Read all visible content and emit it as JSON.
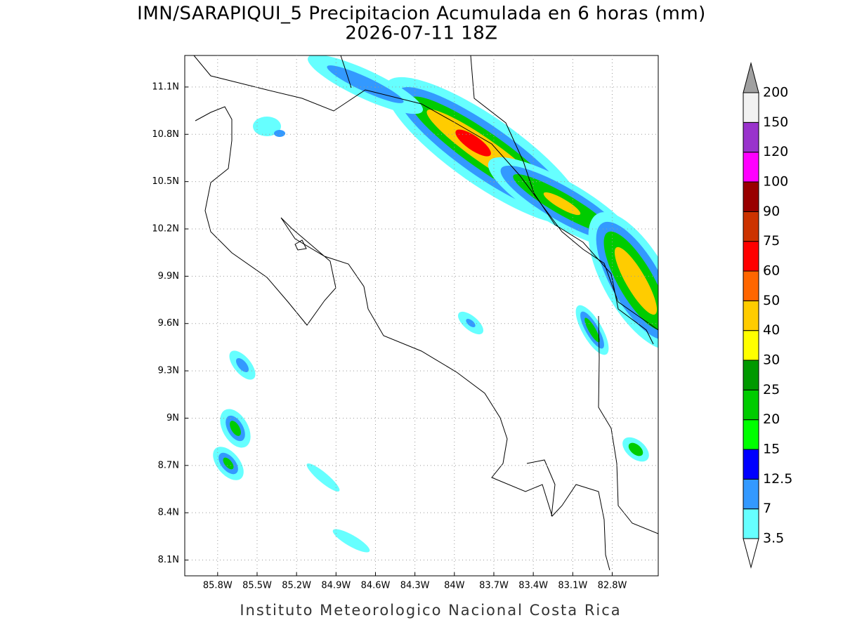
{
  "chart_data": {
    "type": "contour-map",
    "title": "IMN/SARAPIQUI_5 Precipitacion Acumulada en 6 horas (mm)",
    "subtitle": "2026-07-11 18Z",
    "footer": "Instituto Meteorologico Nacional Costa Rica",
    "xlim": [
      -86.05,
      -82.45
    ],
    "ylim": [
      8.0,
      11.3
    ],
    "xticks": [
      {
        "value": -85.8,
        "label": "85.8W"
      },
      {
        "value": -85.5,
        "label": "85.5W"
      },
      {
        "value": -85.2,
        "label": "85.2W"
      },
      {
        "value": -84.9,
        "label": "84.9W"
      },
      {
        "value": -84.6,
        "label": "84.6W"
      },
      {
        "value": -84.3,
        "label": "84.3W"
      },
      {
        "value": -84.0,
        "label": "84W"
      },
      {
        "value": -83.7,
        "label": "83.7W"
      },
      {
        "value": -83.4,
        "label": "83.4W"
      },
      {
        "value": -83.1,
        "label": "83.1W"
      },
      {
        "value": -82.8,
        "label": "82.8W"
      }
    ],
    "yticks": [
      {
        "value": 8.1,
        "label": "8.1N"
      },
      {
        "value": 8.4,
        "label": "8.4N"
      },
      {
        "value": 8.7,
        "label": "8.7N"
      },
      {
        "value": 9.0,
        "label": "9N"
      },
      {
        "value": 9.3,
        "label": "9.3N"
      },
      {
        "value": 9.6,
        "label": "9.6N"
      },
      {
        "value": 9.9,
        "label": "9.9N"
      },
      {
        "value": 10.2,
        "label": "10.2N"
      },
      {
        "value": 10.5,
        "label": "10.5N"
      },
      {
        "value": 10.8,
        "label": "10.8N"
      },
      {
        "value": 11.1,
        "label": "11.1N"
      }
    ],
    "grid": true,
    "legend": {
      "levels": [
        3.5,
        7,
        12.5,
        15,
        20,
        25,
        30,
        40,
        50,
        60,
        75,
        90,
        100,
        120,
        150,
        200
      ],
      "colors": [
        "#66ffff",
        "#3399ff",
        "#0000ff",
        "#00ff00",
        "#00cc00",
        "#009900",
        "#ffff00",
        "#ffcc00",
        "#ff6600",
        "#ff0000",
        "#cc3300",
        "#990000",
        "#ff00ff",
        "#9933cc",
        "#f2f2f2"
      ],
      "under_color": "#ffffff",
      "over_color": "#a0a0a0"
    }
  }
}
